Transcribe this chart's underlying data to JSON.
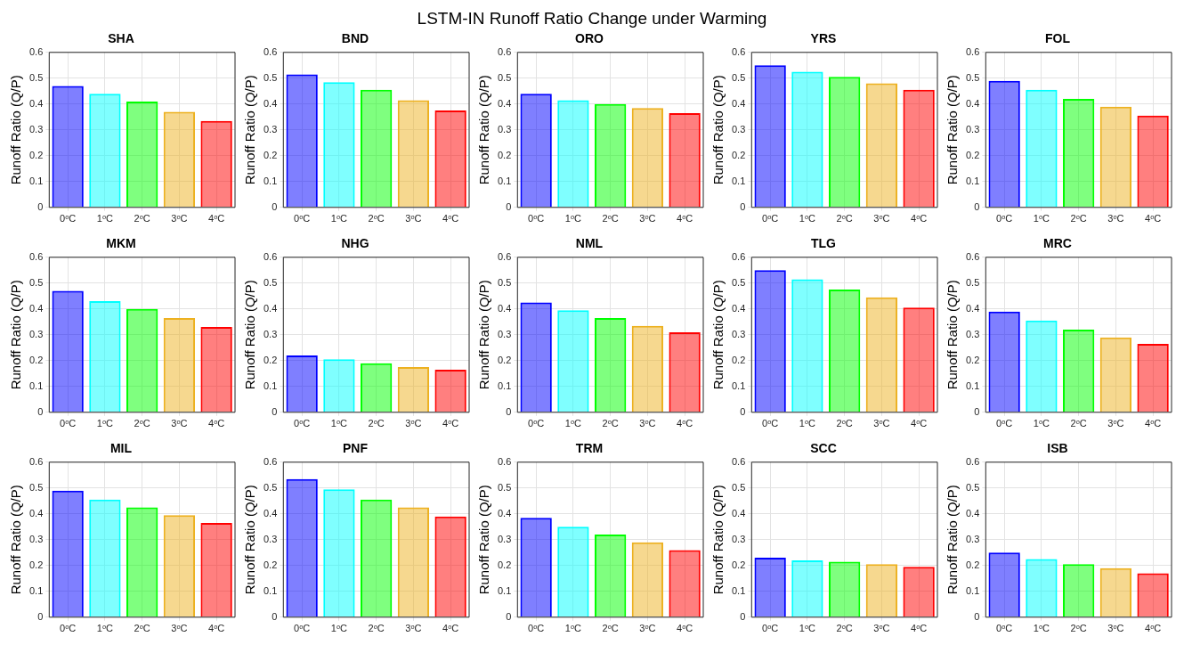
{
  "chart_data": [
    {
      "type": "bar",
      "title": "SHA",
      "ylabel": "Runoff Ratio (Q/P)",
      "annotations": [
        "LSTM-IN Runoff Ratio Change under Warming"
      ],
      "categories": [
        "0ᵒC",
        "1ᵒC",
        "2ᵒC",
        "3ᵒC",
        "4ᵒC"
      ],
      "values": [
        0.47,
        0.44,
        0.41,
        0.37,
        0.335
      ],
      "colors": [
        "#0000ff",
        "#00ffff",
        "#00ff00",
        "#edb120",
        "#ff0000"
      ],
      "ylim": [
        0,
        0.6
      ],
      "yticks": [
        0,
        0.1,
        0.2,
        0.3,
        0.4,
        0.5,
        0.6
      ],
      "grid": true
    },
    {
      "type": "bar",
      "title": "BND",
      "ylabel": "Runoff Ratio (Q/P)",
      "categories": [
        "0ᵒC",
        "1ᵒC",
        "2ᵒC",
        "3ᵒC",
        "4ᵒC"
      ],
      "values": [
        0.515,
        0.485,
        0.455,
        0.415,
        0.375
      ],
      "colors": [
        "#0000ff",
        "#00ffff",
        "#00ff00",
        "#edb120",
        "#ff0000"
      ],
      "ylim": [
        0,
        0.6
      ],
      "yticks": [
        0,
        0.1,
        0.2,
        0.3,
        0.4,
        0.5,
        0.6
      ],
      "grid": true
    },
    {
      "type": "bar",
      "title": "ORO",
      "ylabel": "Runoff Ratio (Q/P)",
      "categories": [
        "0ᵒC",
        "1ᵒC",
        "2ᵒC",
        "3ᵒC",
        "4ᵒC"
      ],
      "values": [
        0.44,
        0.415,
        0.4,
        0.385,
        0.365
      ],
      "colors": [
        "#0000ff",
        "#00ffff",
        "#00ff00",
        "#edb120",
        "#ff0000"
      ],
      "ylim": [
        0,
        0.6
      ],
      "yticks": [
        0,
        0.1,
        0.2,
        0.3,
        0.4,
        0.5,
        0.6
      ],
      "grid": true
    },
    {
      "type": "bar",
      "title": "YRS",
      "ylabel": "Runoff Ratio (Q/P)",
      "categories": [
        "0ᵒC",
        "1ᵒC",
        "2ᵒC",
        "3ᵒC",
        "4ᵒC"
      ],
      "values": [
        0.55,
        0.525,
        0.505,
        0.48,
        0.455
      ],
      "colors": [
        "#0000ff",
        "#00ffff",
        "#00ff00",
        "#edb120",
        "#ff0000"
      ],
      "ylim": [
        0,
        0.6
      ],
      "yticks": [
        0,
        0.1,
        0.2,
        0.3,
        0.4,
        0.5,
        0.6
      ],
      "grid": true
    },
    {
      "type": "bar",
      "title": "FOL",
      "ylabel": "Runoff Ratio (Q/P)",
      "categories": [
        "0ᵒC",
        "1ᵒC",
        "2ᵒC",
        "3ᵒC",
        "4ᵒC"
      ],
      "values": [
        0.49,
        0.455,
        0.42,
        0.39,
        0.355
      ],
      "colors": [
        "#0000ff",
        "#00ffff",
        "#00ff00",
        "#edb120",
        "#ff0000"
      ],
      "ylim": [
        0,
        0.6
      ],
      "yticks": [
        0,
        0.1,
        0.2,
        0.3,
        0.4,
        0.5,
        0.6
      ],
      "grid": true
    },
    {
      "type": "bar",
      "title": "MKM",
      "ylabel": "Runoff Ratio (Q/P)",
      "categories": [
        "0ᵒC",
        "1ᵒC",
        "2ᵒC",
        "3ᵒC",
        "4ᵒC"
      ],
      "values": [
        0.47,
        0.43,
        0.4,
        0.365,
        0.33
      ],
      "colors": [
        "#0000ff",
        "#00ffff",
        "#00ff00",
        "#edb120",
        "#ff0000"
      ],
      "ylim": [
        0,
        0.6
      ],
      "yticks": [
        0,
        0.1,
        0.2,
        0.3,
        0.4,
        0.5,
        0.6
      ],
      "grid": true
    },
    {
      "type": "bar",
      "title": "NHG",
      "ylabel": "Runoff Ratio (Q/P)",
      "categories": [
        "0ᵒC",
        "1ᵒC",
        "2ᵒC",
        "3ᵒC",
        "4ᵒC"
      ],
      "values": [
        0.22,
        0.205,
        0.19,
        0.175,
        0.165
      ],
      "colors": [
        "#0000ff",
        "#00ffff",
        "#00ff00",
        "#edb120",
        "#ff0000"
      ],
      "ylim": [
        0,
        0.6
      ],
      "yticks": [
        0,
        0.1,
        0.2,
        0.3,
        0.4,
        0.5,
        0.6
      ],
      "grid": true
    },
    {
      "type": "bar",
      "title": "NML",
      "ylabel": "Runoff Ratio (Q/P)",
      "categories": [
        "0ᵒC",
        "1ᵒC",
        "2ᵒC",
        "3ᵒC",
        "4ᵒC"
      ],
      "values": [
        0.425,
        0.395,
        0.365,
        0.335,
        0.31
      ],
      "colors": [
        "#0000ff",
        "#00ffff",
        "#00ff00",
        "#edb120",
        "#ff0000"
      ],
      "ylim": [
        0,
        0.6
      ],
      "yticks": [
        0,
        0.1,
        0.2,
        0.3,
        0.4,
        0.5,
        0.6
      ],
      "grid": true
    },
    {
      "type": "bar",
      "title": "TLG",
      "ylabel": "Runoff Ratio (Q/P)",
      "categories": [
        "0ᵒC",
        "1ᵒC",
        "2ᵒC",
        "3ᵒC",
        "4ᵒC"
      ],
      "values": [
        0.55,
        0.515,
        0.475,
        0.445,
        0.405
      ],
      "colors": [
        "#0000ff",
        "#00ffff",
        "#00ff00",
        "#edb120",
        "#ff0000"
      ],
      "ylim": [
        0,
        0.6
      ],
      "yticks": [
        0,
        0.1,
        0.2,
        0.3,
        0.4,
        0.5,
        0.6
      ],
      "grid": true
    },
    {
      "type": "bar",
      "title": "MRC",
      "ylabel": "Runoff Ratio (Q/P)",
      "categories": [
        "0ᵒC",
        "1ᵒC",
        "2ᵒC",
        "3ᵒC",
        "4ᵒC"
      ],
      "values": [
        0.39,
        0.355,
        0.32,
        0.29,
        0.265
      ],
      "colors": [
        "#0000ff",
        "#00ffff",
        "#00ff00",
        "#edb120",
        "#ff0000"
      ],
      "ylim": [
        0,
        0.6
      ],
      "yticks": [
        0,
        0.1,
        0.2,
        0.3,
        0.4,
        0.5,
        0.6
      ],
      "grid": true
    },
    {
      "type": "bar",
      "title": "MIL",
      "ylabel": "Runoff Ratio (Q/P)",
      "categories": [
        "0ᵒC",
        "1ᵒC",
        "2ᵒC",
        "3ᵒC",
        "4ᵒC"
      ],
      "values": [
        0.49,
        0.455,
        0.425,
        0.395,
        0.365
      ],
      "colors": [
        "#0000ff",
        "#00ffff",
        "#00ff00",
        "#edb120",
        "#ff0000"
      ],
      "ylim": [
        0,
        0.6
      ],
      "yticks": [
        0,
        0.1,
        0.2,
        0.3,
        0.4,
        0.5,
        0.6
      ],
      "grid": true
    },
    {
      "type": "bar",
      "title": "PNF",
      "ylabel": "Runoff Ratio (Q/P)",
      "categories": [
        "0ᵒC",
        "1ᵒC",
        "2ᵒC",
        "3ᵒC",
        "4ᵒC"
      ],
      "values": [
        0.535,
        0.495,
        0.455,
        0.425,
        0.39
      ],
      "colors": [
        "#0000ff",
        "#00ffff",
        "#00ff00",
        "#edb120",
        "#ff0000"
      ],
      "ylim": [
        0,
        0.6
      ],
      "yticks": [
        0,
        0.1,
        0.2,
        0.3,
        0.4,
        0.5,
        0.6
      ],
      "grid": true
    },
    {
      "type": "bar",
      "title": "TRM",
      "ylabel": "Runoff Ratio (Q/P)",
      "categories": [
        "0ᵒC",
        "1ᵒC",
        "2ᵒC",
        "3ᵒC",
        "4ᵒC"
      ],
      "values": [
        0.385,
        0.35,
        0.32,
        0.29,
        0.26
      ],
      "colors": [
        "#0000ff",
        "#00ffff",
        "#00ff00",
        "#edb120",
        "#ff0000"
      ],
      "ylim": [
        0,
        0.6
      ],
      "yticks": [
        0,
        0.1,
        0.2,
        0.3,
        0.4,
        0.5,
        0.6
      ],
      "grid": true
    },
    {
      "type": "bar",
      "title": "SCC",
      "ylabel": "Runoff Ratio (Q/P)",
      "categories": [
        "0ᵒC",
        "1ᵒC",
        "2ᵒC",
        "3ᵒC",
        "4ᵒC"
      ],
      "values": [
        0.23,
        0.22,
        0.215,
        0.205,
        0.195
      ],
      "colors": [
        "#0000ff",
        "#00ffff",
        "#00ff00",
        "#edb120",
        "#ff0000"
      ],
      "ylim": [
        0,
        0.6
      ],
      "yticks": [
        0,
        0.1,
        0.2,
        0.3,
        0.4,
        0.5,
        0.6
      ],
      "grid": true
    },
    {
      "type": "bar",
      "title": "ISB",
      "ylabel": "Runoff Ratio (Q/P)",
      "categories": [
        "0ᵒC",
        "1ᵒC",
        "2ᵒC",
        "3ᵒC",
        "4ᵒC"
      ],
      "values": [
        0.25,
        0.225,
        0.205,
        0.19,
        0.17
      ],
      "colors": [
        "#0000ff",
        "#00ffff",
        "#00ff00",
        "#edb120",
        "#ff0000"
      ],
      "ylim": [
        0,
        0.6
      ],
      "yticks": [
        0,
        0.1,
        0.2,
        0.3,
        0.4,
        0.5,
        0.6
      ],
      "grid": true
    }
  ]
}
